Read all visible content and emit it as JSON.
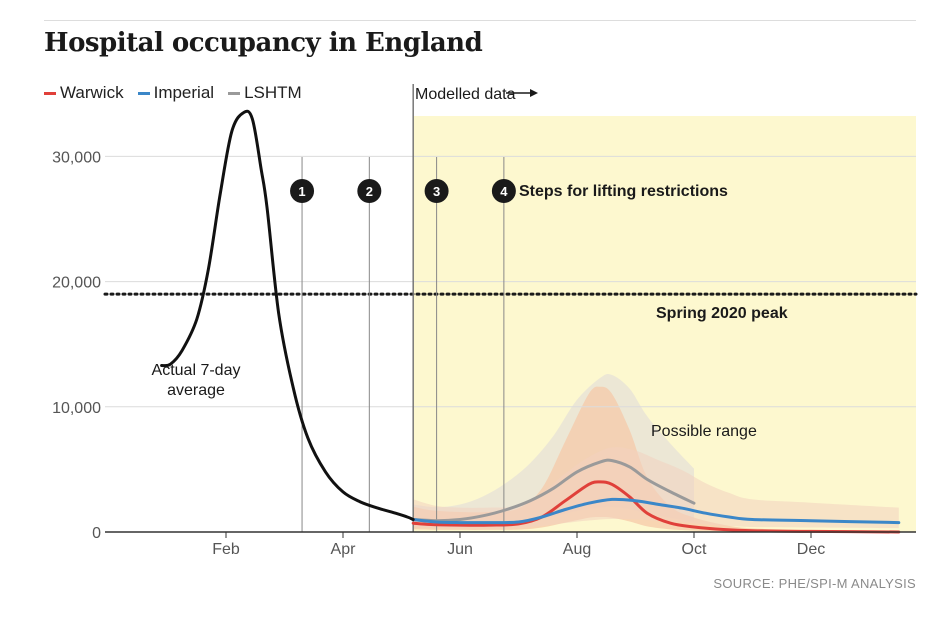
{
  "title": "Hospital occupancy in England",
  "source": "SOURCE: PHE/SPI-M ANALYSIS",
  "colors": {
    "Warwick": "#e0403a",
    "Imperial": "#3b87c8",
    "LSHTM": "#9a9a9a",
    "Actual": "#111111",
    "modelled_bg": "#fdf8cf"
  },
  "legend": [
    {
      "name": "Warwick",
      "color": "#e0403a"
    },
    {
      "name": "Imperial",
      "color": "#3b87c8"
    },
    {
      "name": "LSHTM",
      "color": "#9a9a9a"
    }
  ],
  "annotations": {
    "modelled": "Modelled data",
    "steps": "Steps for lifting restrictions",
    "spring_peak": "Spring 2020 peak",
    "possible_range": "Possible range",
    "actual_line1": "Actual 7-day",
    "actual_line2": "average"
  },
  "chart_data": {
    "type": "line",
    "title": "Hospital occupancy in England",
    "xlabel": "",
    "ylabel": "",
    "x_ticks": [
      "Feb",
      "Apr",
      "Jun",
      "Aug",
      "Oct",
      "Dec"
    ],
    "y_ticks": [
      "0",
      "10,000",
      "20,000",
      "30,000"
    ],
    "ylim": [
      0,
      33000
    ],
    "grid": true,
    "legend_position": "top-left",
    "reference_lines": [
      {
        "label": "Spring 2020 peak",
        "value": 19000
      }
    ],
    "steps": [
      {
        "label": "1",
        "month": 2.3
      },
      {
        "label": "2",
        "month": 3.45
      },
      {
        "label": "3",
        "month": 4.6
      },
      {
        "label": "4",
        "month": 5.75
      }
    ],
    "modelled_start_month": 4.2,
    "series": [
      {
        "name": "Actual 7-day average",
        "x": [
          -0.1,
          0.05,
          0.25,
          0.5,
          0.7,
          0.9,
          1.1,
          1.3,
          1.45,
          1.6,
          1.7,
          1.9,
          2.15,
          2.4,
          2.7,
          3.0,
          3.3,
          3.6,
          3.9,
          4.1,
          4.2
        ],
        "y": [
          13300,
          13400,
          14500,
          17000,
          21000,
          27000,
          32000,
          33500,
          33000,
          29000,
          26000,
          17500,
          11500,
          7500,
          4800,
          3200,
          2400,
          1900,
          1500,
          1200,
          1000
        ]
      },
      {
        "name": "Warwick",
        "x": [
          4.2,
          4.5,
          5.0,
          5.5,
          6.0,
          6.4,
          6.8,
          7.2,
          7.4,
          7.6,
          7.9,
          8.2,
          8.6,
          9.0,
          9.5,
          10.0,
          11.0,
          12.5
        ],
        "y": [
          700,
          600,
          550,
          550,
          650,
          1200,
          2500,
          3800,
          4000,
          3800,
          2800,
          1500,
          700,
          400,
          200,
          100,
          50,
          0
        ]
      },
      {
        "name": "Imperial",
        "x": [
          4.2,
          4.6,
          5.0,
          5.5,
          6.0,
          6.4,
          6.8,
          7.2,
          7.6,
          8.0,
          8.4,
          8.8,
          9.2,
          9.6,
          10.0,
          11.0,
          12.5
        ],
        "y": [
          1000,
          800,
          750,
          750,
          800,
          1200,
          1800,
          2300,
          2600,
          2500,
          2200,
          1900,
          1500,
          1200,
          1000,
          900,
          750
        ]
      },
      {
        "name": "LSHTM",
        "x": [
          4.2,
          4.6,
          5.0,
          5.4,
          5.8,
          6.2,
          6.6,
          7.0,
          7.4,
          7.6,
          7.9,
          8.2,
          8.6,
          9.0
        ],
        "y": [
          1000,
          900,
          1000,
          1300,
          1800,
          2500,
          3500,
          4800,
          5600,
          5700,
          5200,
          4200,
          3200,
          2300
        ]
      }
    ]
  }
}
